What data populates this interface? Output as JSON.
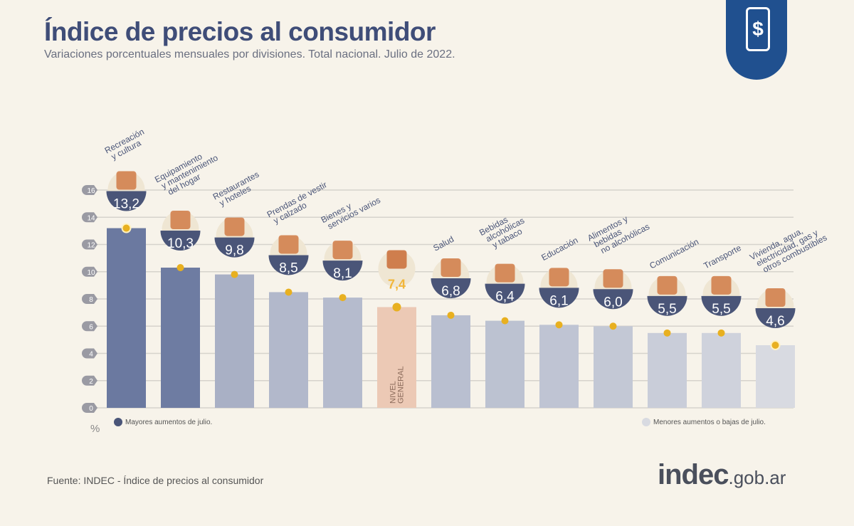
{
  "header": {
    "title": "Índice de precios al consumidor",
    "subtitle": "Variaciones porcentuales mensuales por divisiones. Total nacional. Julio de 2022."
  },
  "logo": {
    "icon": "price-tag-dollar-icon",
    "symbol": "$"
  },
  "chart_data": {
    "type": "bar",
    "ylabel": "%",
    "ylim": [
      0,
      16
    ],
    "yticks": [
      "0",
      "2",
      "4",
      "6",
      "8",
      "10",
      "12",
      "14",
      "16"
    ],
    "grid": true,
    "categories": [
      "Recreación y cultura",
      "Equipamiento y mantenimiento del hogar",
      "Restaurantes y hoteles",
      "Prendas de vestir y calzado",
      "Bienes y servicios varios",
      "NIVEL GENERAL",
      "Salud",
      "Bebidas alcohólicas y tabaco",
      "Educación",
      "Alimentos y bebidas no alcohólicas",
      "Comunicación",
      "Transporte",
      "Vivienda, agua, electricidad, gas y otros combustibles"
    ],
    "label_lines": [
      [
        "Recreación",
        "y cultura"
      ],
      [
        "Equipamiento",
        "y mantenimiento",
        "del hogar"
      ],
      [
        "Restaurantes",
        "y hoteles"
      ],
      [
        "Prendas de vestir",
        "y calzado"
      ],
      [
        "Bienes y",
        "servicios varios"
      ],
      [],
      [
        "Salud"
      ],
      [
        "Bebidas",
        "alcohólicas",
        "y tabaco"
      ],
      [
        "Educación"
      ],
      [
        "Alimentos y",
        "bebidas",
        "no alcohólicas"
      ],
      [
        "Comunicación"
      ],
      [
        "Transporte"
      ],
      [
        "Vivienda, agua,",
        "electricidad, gas y",
        "otros combustibles"
      ]
    ],
    "values": [
      13.2,
      10.3,
      9.8,
      8.5,
      8.1,
      7.4,
      6.8,
      6.4,
      6.1,
      6.0,
      5.5,
      5.5,
      4.6
    ],
    "value_labels": [
      "13,2",
      "10,3",
      "9,8",
      "8,5",
      "8,1",
      "7,4",
      "6,8",
      "6,4",
      "6,1",
      "6,0",
      "5,5",
      "5,5",
      "4,6"
    ],
    "bar_colors": [
      "#6b79a0",
      "#6e7ca2",
      "#a9b0c5",
      "#b2b8cb",
      "#b5bbcd",
      "#ecc9b5",
      "#b9bfd0",
      "#bcc2d1",
      "#bfc4d3",
      "#c3c8d5",
      "#c9cdd9",
      "#cfd2dc",
      "#d8dae1"
    ],
    "general_label": "NIVEL GENERAL",
    "colors": {
      "badge": "#4a5578",
      "marker": "#e8b020",
      "general_value": "#f2b63a"
    },
    "legend": [
      {
        "label": "Mayores aumentos de julio.",
        "color": "#4a5578",
        "position": "bottom-left"
      },
      {
        "label": "Menores aumentos o bajas de julio.",
        "color": "#d8dae1",
        "position": "bottom-right"
      }
    ]
  },
  "footer": {
    "source": "Fuente: INDEC - Índice de precios al consumidor",
    "brand_main": "indec",
    "brand_suffix": ".gob.ar"
  }
}
